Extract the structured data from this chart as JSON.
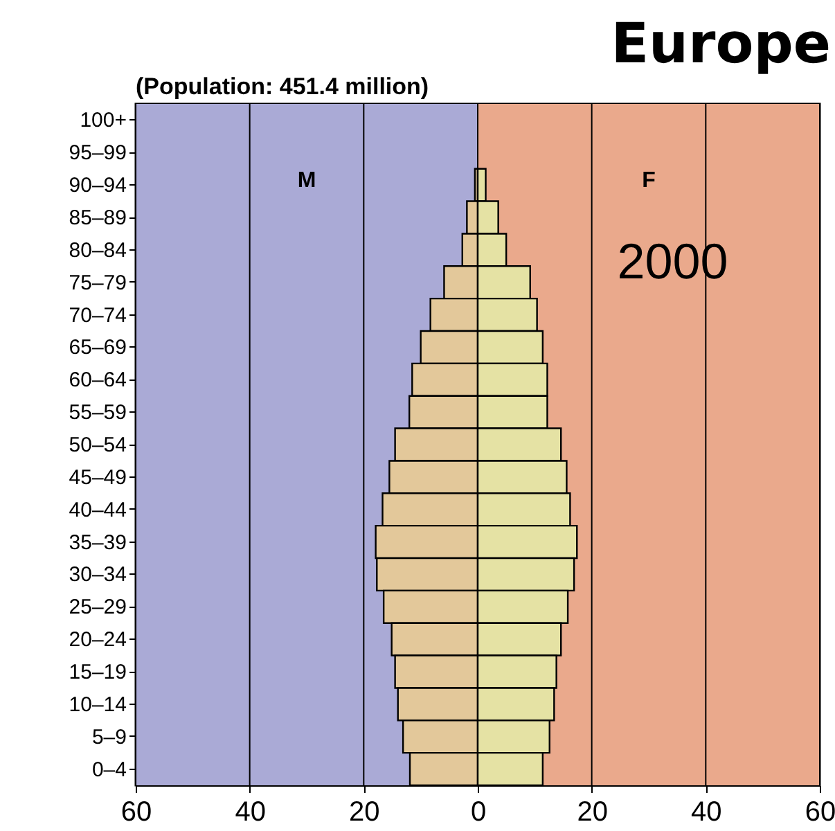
{
  "chart_data": {
    "type": "bar",
    "title": "Europe",
    "subtitle": "(Population: 451.4 million)",
    "orientation": "horizontal",
    "stacked": true,
    "categories": [
      "100+",
      "95–99",
      "90–94",
      "85–89",
      "80–84",
      "75–79",
      "70–74",
      "65–69",
      "60–64",
      "55–59",
      "50–54",
      "45–49",
      "40–44",
      "35–39",
      "30–34",
      "25–29",
      "20–24",
      "15–19",
      "10–14",
      "5–9",
      "0–4"
    ],
    "series": [
      {
        "color": "#e3c89a",
        "values": [
          0,
          0,
          -0.5,
          -1.9,
          -2.7,
          -5.9,
          -8.3,
          -10.0,
          -11.5,
          -12.0,
          -14.5,
          -15.5,
          -16.7,
          -17.9,
          -17.7,
          -16.5,
          -15.1,
          -14.5,
          -14.0,
          -13.1,
          -11.9
        ]
      },
      {
        "color": "#e5e2a4",
        "values": [
          0,
          0,
          1.4,
          3.6,
          5.0,
          9.2,
          10.4,
          11.4,
          12.2,
          12.2,
          14.6,
          15.6,
          16.2,
          17.4,
          16.9,
          15.8,
          14.6,
          13.8,
          13.4,
          12.6,
          11.4
        ]
      }
    ],
    "xlim": [
      -60,
      60
    ],
    "xticks": [
      {
        "value": -60,
        "label": "60"
      },
      {
        "value": -40,
        "label": "40"
      },
      {
        "value": -20,
        "label": "20"
      },
      0,
      20,
      40,
      60
    ],
    "grid": "x",
    "bands": [
      {
        "axis": "x",
        "from": -60,
        "to": 0,
        "color": "#aaaad6",
        "label": "M"
      },
      {
        "axis": "x",
        "from": 0,
        "to": 60,
        "color": "#eaa98c",
        "label": "F"
      }
    ],
    "annotations": [
      "2000"
    ]
  }
}
